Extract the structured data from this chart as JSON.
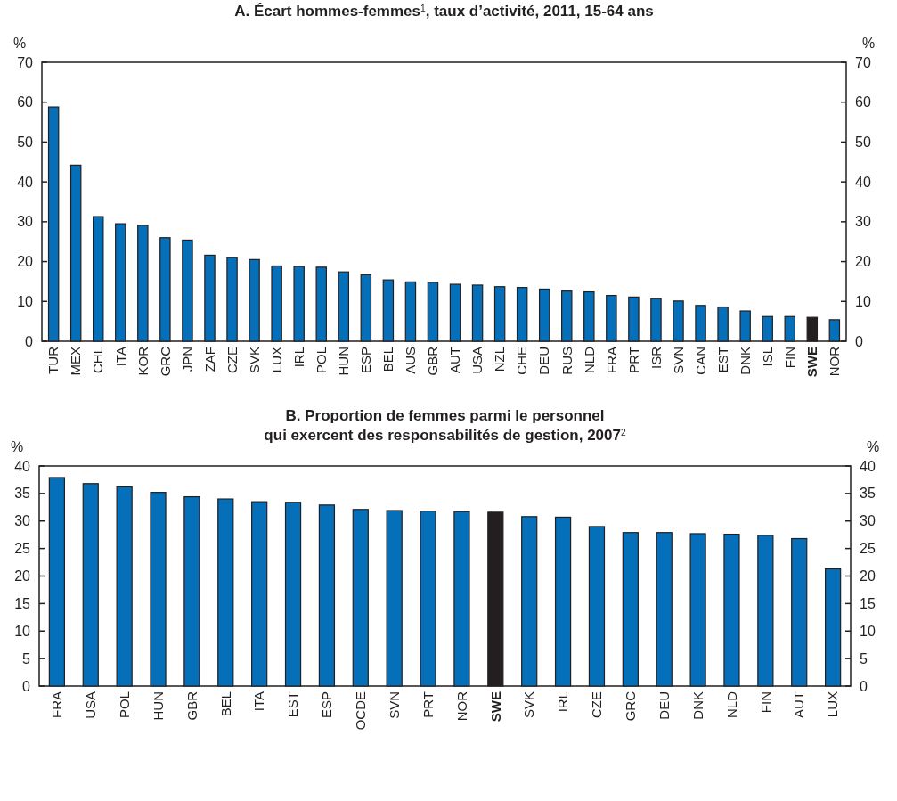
{
  "chart_data": [
    {
      "type": "bar",
      "title": "A. Écart hommes-femmes$^{1}$, taux d’activité, 2011, 15-64 ans",
      "ylabel": "%",
      "y2label": "%",
      "categories": [
        "TUR",
        "MEX",
        "CHL",
        "ITA",
        "KOR",
        "GRC",
        "JPN",
        "ZAF",
        "CZE",
        "SVK",
        "LUX",
        "IRL",
        "POL",
        "HUN",
        "ESP",
        "BEL",
        "AUS",
        "GBR",
        "AUT",
        "USA",
        "NZL",
        "CHE",
        "DEU",
        "RUS",
        "NLD",
        "FRA",
        "PRT",
        "ISR",
        "SVN",
        "CAN",
        "EST",
        "DNK",
        "ISL",
        "FIN",
        "SWE",
        "NOR"
      ],
      "values": [
        58.8,
        44.2,
        31.3,
        29.5,
        29.1,
        26.0,
        25.4,
        21.6,
        21.0,
        20.5,
        18.9,
        18.8,
        18.6,
        17.4,
        16.7,
        15.4,
        14.9,
        14.8,
        14.3,
        14.1,
        13.7,
        13.5,
        13.1,
        12.6,
        12.4,
        11.5,
        11.1,
        10.7,
        10.1,
        9.0,
        8.6,
        7.6,
        6.2,
        6.2,
        6.0,
        5.4
      ],
      "colors": [
        "#0570b9",
        "#0570b9",
        "#0570b9",
        "#0570b9",
        "#0570b9",
        "#0570b9",
        "#0570b9",
        "#0570b9",
        "#0570b9",
        "#0570b9",
        "#0570b9",
        "#0570b9",
        "#0570b9",
        "#0570b9",
        "#0570b9",
        "#0570b9",
        "#0570b9",
        "#0570b9",
        "#0570b9",
        "#0570b9",
        "#0570b9",
        "#0570b9",
        "#0570b9",
        "#0570b9",
        "#0570b9",
        "#0570b9",
        "#0570b9",
        "#0570b9",
        "#0570b9",
        "#0570b9",
        "#0570b9",
        "#0570b9",
        "#0570b9",
        "#0570b9",
        "#231f20",
        "#0570b9"
      ],
      "ylim": [
        0,
        70
      ],
      "yticks": [
        0,
        10,
        20,
        30,
        40,
        50,
        60,
        70
      ],
      "y2lim": [
        0,
        70
      ],
      "y2ticks": [
        0,
        10,
        20,
        30,
        40,
        50,
        60,
        70
      ],
      "grid": false
    },
    {
      "type": "bar",
      "title": "B. Proportion de femmes parmi le personnel\nqui exercent des responsabilités de gestion, 2007$^{2}$",
      "ylabel": "%",
      "y2label": "%",
      "categories": [
        "FRA",
        "USA",
        "POL",
        "HUN",
        "GBR",
        "BEL",
        "ITA",
        "EST",
        "ESP",
        "OCDE",
        "SVN",
        "PRT",
        "NOR",
        "SWE",
        "SVK",
        "IRL",
        "CZE",
        "GRC",
        "DEU",
        "DNK",
        "NLD",
        "FIN",
        "AUT",
        "LUX"
      ],
      "values": [
        37.9,
        36.8,
        36.2,
        35.2,
        34.4,
        34.0,
        33.5,
        33.4,
        32.9,
        32.1,
        31.9,
        31.8,
        31.7,
        31.6,
        30.8,
        30.7,
        29.0,
        27.9,
        27.9,
        27.7,
        27.6,
        27.4,
        26.8,
        21.3
      ],
      "colors": [
        "#0570b9",
        "#0570b9",
        "#0570b9",
        "#0570b9",
        "#0570b9",
        "#0570b9",
        "#0570b9",
        "#0570b9",
        "#0570b9",
        "#0570b9",
        "#0570b9",
        "#0570b9",
        "#0570b9",
        "#231f20",
        "#0570b9",
        "#0570b9",
        "#0570b9",
        "#0570b9",
        "#0570b9",
        "#0570b9",
        "#0570b9",
        "#0570b9",
        "#0570b9",
        "#0570b9"
      ],
      "ylim": [
        0,
        40
      ],
      "yticks": [
        0,
        5,
        10,
        15,
        20,
        25,
        30,
        35,
        40
      ],
      "y2lim": [
        0,
        40
      ],
      "y2ticks": [
        0,
        5,
        10,
        15,
        20,
        25,
        30,
        35,
        40
      ],
      "grid": false
    }
  ]
}
